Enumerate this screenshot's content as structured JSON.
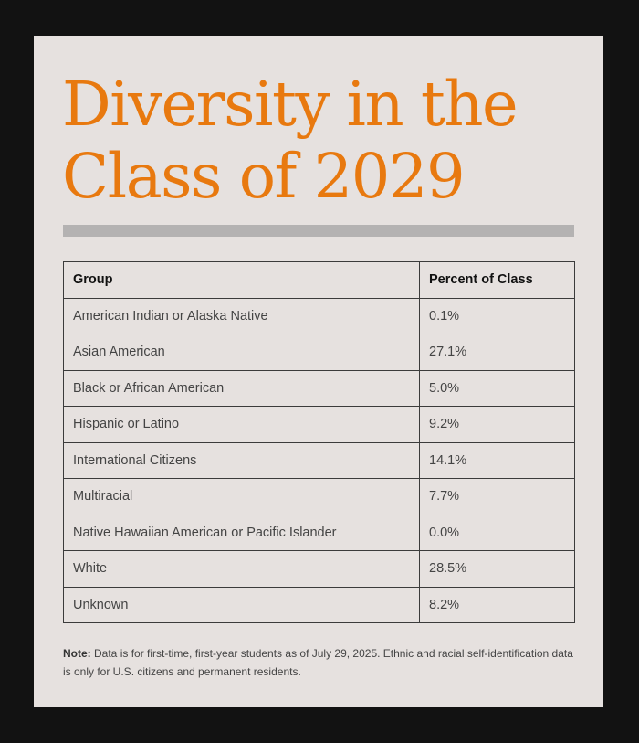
{
  "title": {
    "line1": "Diversity in the",
    "line2": "Class of 2029"
  },
  "table": {
    "headers": [
      "Group",
      "Percent of Class"
    ],
    "rows": [
      {
        "group": "American Indian or Alaska Native",
        "percent": "0.1%"
      },
      {
        "group": "Asian American",
        "percent": "27.1%"
      },
      {
        "group": "Black or African American",
        "percent": "5.0%"
      },
      {
        "group": "Hispanic or Latino",
        "percent": "9.2%"
      },
      {
        "group": "International Citizens",
        "percent": "14.1%"
      },
      {
        "group": "Multiracial",
        "percent": "7.7%"
      },
      {
        "group": "Native Hawaiian American or Pacific Islander",
        "percent": "0.0%"
      },
      {
        "group": "White",
        "percent": "28.5%"
      },
      {
        "group": "Unknown",
        "percent": "8.2%"
      }
    ]
  },
  "note": {
    "label": "Note:",
    "text": " Data is for first-time, first-year students as of July 29, 2025. Ethnic and racial self-identification data is only for U.S. citizens and permanent residents."
  },
  "colors": {
    "accent": "#e8790f",
    "card_background": "#e6e1df",
    "page_background": "#121212",
    "divider": "#b4b2b2"
  }
}
